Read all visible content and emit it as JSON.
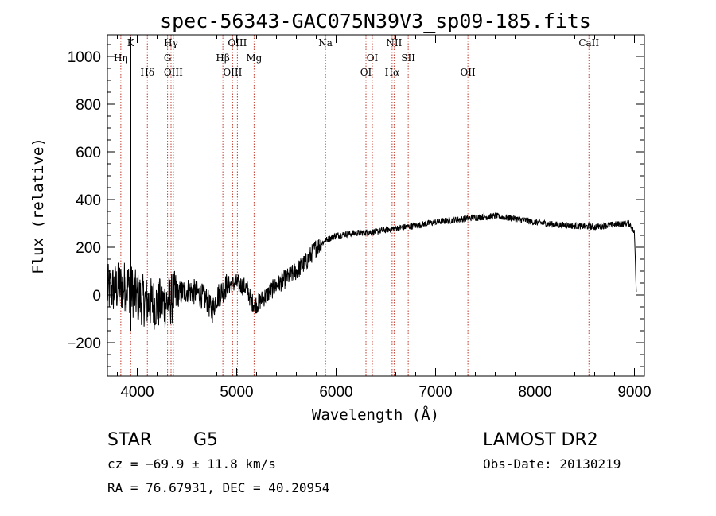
{
  "chart_data": {
    "type": "line",
    "title": "spec-56343-GAC075N39V3_sp09-185.fits",
    "xlabel": "Wavelength (Å)",
    "ylabel": "Flux (relative)",
    "xlim": [
      3700,
      9100
    ],
    "ylim": [
      -340,
      1090
    ],
    "xticks": [
      4000,
      5000,
      6000,
      7000,
      8000,
      9000
    ],
    "xtick_labels": [
      "4000",
      "5000",
      "6000",
      "7000",
      "8000",
      "9000"
    ],
    "yticks": [
      -200,
      0,
      200,
      400,
      600,
      800,
      1000
    ],
    "ytick_labels": [
      "−200",
      "0",
      "200",
      "400",
      "600",
      "800",
      "1000"
    ],
    "spectral_lines": [
      {
        "name": "Hη",
        "wavelength": 3835,
        "row": 2
      },
      {
        "name": "K",
        "wavelength": 3934,
        "row": 0
      },
      {
        "name": "Hδ",
        "wavelength": 4102,
        "row": 3
      },
      {
        "name": "Hγ",
        "wavelength": 4340,
        "row": 0
      },
      {
        "name": "G",
        "wavelength": 4305,
        "row": 2
      },
      {
        "name": "OIII",
        "wavelength": 4363,
        "row": 3
      },
      {
        "name": "OIII",
        "wavelength": 5007,
        "row": 0
      },
      {
        "name": "Hβ",
        "wavelength": 4861,
        "row": 2
      },
      {
        "name": "OIII",
        "wavelength": 4959,
        "row": 3
      },
      {
        "name": "Mg",
        "wavelength": 5175,
        "row": 2
      },
      {
        "name": "Na",
        "wavelength": 5893,
        "row": 0
      },
      {
        "name": "NII",
        "wavelength": 6583,
        "row": 0
      },
      {
        "name": "OI",
        "wavelength": 6364,
        "row": 2
      },
      {
        "name": "SII",
        "wavelength": 6725,
        "row": 2
      },
      {
        "name": "OI",
        "wavelength": 6300,
        "row": 3
      },
      {
        "name": "Hα",
        "wavelength": 6563,
        "row": 3
      },
      {
        "name": "OII",
        "wavelength": 7325,
        "row": 3
      },
      {
        "name": "CaII",
        "wavelength": 8542,
        "row": 0
      }
    ],
    "spectrum_anchors": [
      {
        "x": 3700,
        "y": 20
      },
      {
        "x": 3800,
        "y": 30
      },
      {
        "x": 3900,
        "y": 40
      },
      {
        "x": 4000,
        "y": -10
      },
      {
        "x": 4100,
        "y": -30
      },
      {
        "x": 4200,
        "y": -40
      },
      {
        "x": 4300,
        "y": -30
      },
      {
        "x": 4400,
        "y": 0
      },
      {
        "x": 4500,
        "y": 20
      },
      {
        "x": 4600,
        "y": 10
      },
      {
        "x": 4700,
        "y": -20
      },
      {
        "x": 4750,
        "y": -70
      },
      {
        "x": 4800,
        "y": -10
      },
      {
        "x": 4900,
        "y": 40
      },
      {
        "x": 5000,
        "y": 50
      },
      {
        "x": 5100,
        "y": 30
      },
      {
        "x": 5150,
        "y": -30
      },
      {
        "x": 5200,
        "y": -40
      },
      {
        "x": 5300,
        "y": 0
      },
      {
        "x": 5400,
        "y": 40
      },
      {
        "x": 5500,
        "y": 70
      },
      {
        "x": 5600,
        "y": 100
      },
      {
        "x": 5700,
        "y": 140
      },
      {
        "x": 5800,
        "y": 200
      },
      {
        "x": 5900,
        "y": 230
      },
      {
        "x": 6000,
        "y": 250
      },
      {
        "x": 6200,
        "y": 260
      },
      {
        "x": 6400,
        "y": 265
      },
      {
        "x": 6600,
        "y": 280
      },
      {
        "x": 6800,
        "y": 290
      },
      {
        "x": 7000,
        "y": 305
      },
      {
        "x": 7200,
        "y": 315
      },
      {
        "x": 7400,
        "y": 325
      },
      {
        "x": 7600,
        "y": 330
      },
      {
        "x": 7800,
        "y": 320
      },
      {
        "x": 8000,
        "y": 305
      },
      {
        "x": 8200,
        "y": 295
      },
      {
        "x": 8400,
        "y": 290
      },
      {
        "x": 8600,
        "y": 285
      },
      {
        "x": 8800,
        "y": 295
      },
      {
        "x": 8950,
        "y": 300
      },
      {
        "x": 9000,
        "y": 260
      },
      {
        "x": 9020,
        "y": 0
      }
    ],
    "spike": {
      "x": 3934,
      "y_top": 1080
    }
  },
  "info": {
    "class": "STAR",
    "subclass": "G5",
    "survey": "LAMOST DR2",
    "cz": "cz = −69.9 ± 11.8 km/s",
    "obs_date": "Obs-Date: 20130219",
    "coords": "RA =  76.67931, DEC =  40.20954"
  },
  "colors": {
    "line": "#000000",
    "marker": "#c0392b",
    "background": "#ffffff"
  }
}
